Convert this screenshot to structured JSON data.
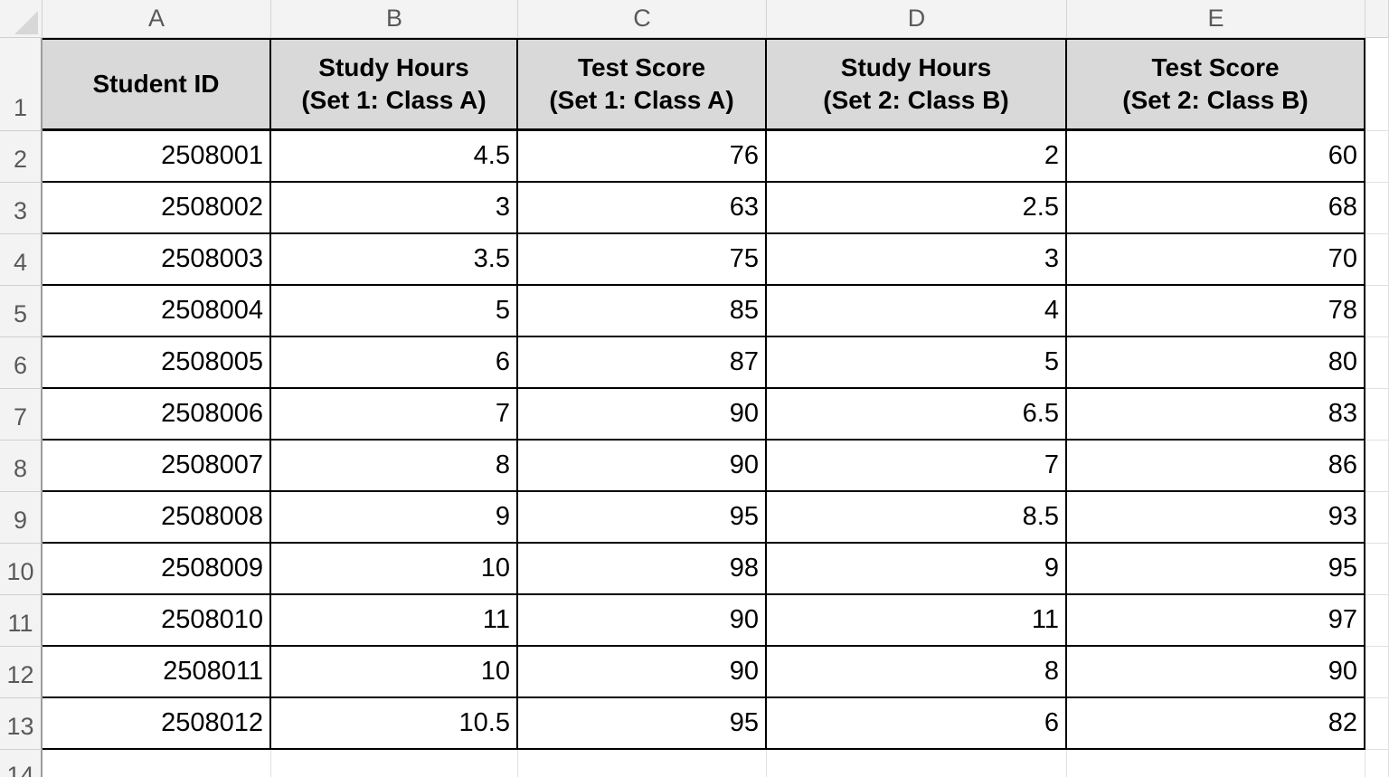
{
  "worksheet": {
    "column_letters": [
      "A",
      "B",
      "C",
      "D",
      "E"
    ],
    "row_numbers": [
      "1",
      "2",
      "3",
      "4",
      "5",
      "6",
      "7",
      "8",
      "9",
      "10",
      "11",
      "12",
      "13",
      "14"
    ],
    "header_row": [
      {
        "lines": [
          "Student ID"
        ]
      },
      {
        "lines": [
          "Study Hours",
          "(Set 1: Class A)"
        ]
      },
      {
        "lines": [
          "Test Score",
          "(Set 1: Class A)"
        ]
      },
      {
        "lines": [
          "Study Hours",
          "(Set 2: Class B)"
        ]
      },
      {
        "lines": [
          "Test Score",
          "(Set 2: Class B)"
        ]
      }
    ],
    "data_rows": [
      [
        "2508001",
        "4.5",
        "76",
        "2",
        "60"
      ],
      [
        "2508002",
        "3",
        "63",
        "2.5",
        "68"
      ],
      [
        "2508003",
        "3.5",
        "75",
        "3",
        "70"
      ],
      [
        "2508004",
        "5",
        "85",
        "4",
        "78"
      ],
      [
        "2508005",
        "6",
        "87",
        "5",
        "80"
      ],
      [
        "2508006",
        "7",
        "90",
        "6.5",
        "83"
      ],
      [
        "2508007",
        "8",
        "90",
        "7",
        "86"
      ],
      [
        "2508008",
        "9",
        "95",
        "8.5",
        "93"
      ],
      [
        "2508009",
        "10",
        "98",
        "9",
        "95"
      ],
      [
        "2508010",
        "11",
        "90",
        "11",
        "97"
      ],
      [
        "2508011",
        "10",
        "90",
        "8",
        "90"
      ],
      [
        "2508012",
        "10.5",
        "95",
        "6",
        "82"
      ]
    ],
    "colors": {
      "header_fill": "#d9d9d9",
      "frame_fill": "#f3f3f3",
      "frame_text": "#595959",
      "table_border": "#000000",
      "gridline": "#e0e0e0"
    }
  }
}
